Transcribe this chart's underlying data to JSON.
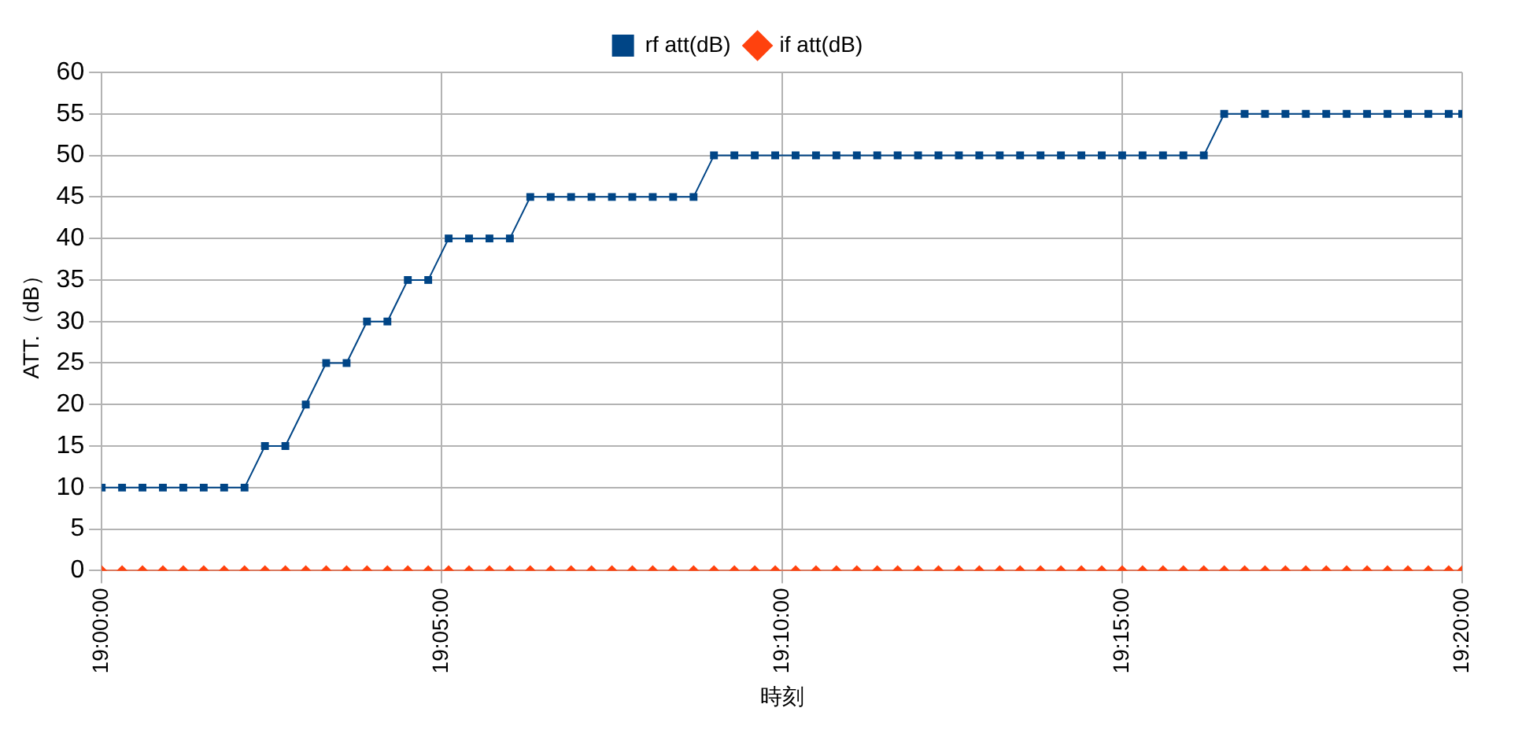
{
  "chart_data": {
    "type": "line",
    "xlabel": "時刻",
    "ylabel": "ATT.（dB）",
    "x": [
      19,
      19.005,
      19.01,
      19.015,
      19.02,
      19.025,
      19.03,
      19.035,
      19.04,
      19.045,
      19.05,
      19.055,
      19.06,
      19.065,
      19.07,
      19.075,
      19.08,
      19.085,
      19.09,
      19.095,
      19.1,
      19.105,
      19.11,
      19.115,
      19.12,
      19.125,
      19.13,
      19.135,
      19.14,
      19.145,
      19.15,
      19.155,
      19.16,
      19.165,
      19.17,
      19.175,
      19.18,
      19.185,
      19.19,
      19.195,
      19.2,
      19.205,
      19.21,
      19.215,
      19.22,
      19.225,
      19.23,
      19.235,
      19.24,
      19.245,
      19.25,
      19.255,
      19.26,
      19.265,
      19.27,
      19.275,
      19.28,
      19.285,
      19.29,
      19.295,
      19.3,
      19.305,
      19.31,
      19.315,
      19.32,
      19.325,
      19.33,
      19.3333
    ],
    "series": [
      {
        "name": "rf att(dB)",
        "color": "#004586",
        "marker": "square",
        "values": [
          10,
          10,
          10,
          10,
          10,
          10,
          10,
          10,
          15,
          15,
          20,
          25,
          25,
          30,
          30,
          35,
          35,
          40,
          40,
          40,
          40,
          45,
          45,
          45,
          45,
          45,
          45,
          45,
          45,
          45,
          50,
          50,
          50,
          50,
          50,
          50,
          50,
          50,
          50,
          50,
          50,
          50,
          50,
          50,
          50,
          50,
          50,
          50,
          50,
          50,
          50,
          50,
          50,
          50,
          50,
          55,
          55,
          55,
          55,
          55,
          55,
          55,
          55,
          55,
          55,
          55,
          55,
          55
        ]
      },
      {
        "name": "if att(dB)",
        "color": "#ff420e",
        "marker": "diamond",
        "values": [
          0,
          0,
          0,
          0,
          0,
          0,
          0,
          0,
          0,
          0,
          0,
          0,
          0,
          0,
          0,
          0,
          0,
          0,
          0,
          0,
          0,
          0,
          0,
          0,
          0,
          0,
          0,
          0,
          0,
          0,
          0,
          0,
          0,
          0,
          0,
          0,
          0,
          0,
          0,
          0,
          0,
          0,
          0,
          0,
          0,
          0,
          0,
          0,
          0,
          0,
          0,
          0,
          0,
          0,
          0,
          0,
          0,
          0,
          0,
          0,
          0,
          0,
          0,
          0,
          0,
          0,
          0,
          0
        ]
      }
    ],
    "xlim": [
      19,
      19.3333
    ],
    "xticks": [
      {
        "value": 19,
        "label": "19:00:00"
      },
      {
        "value": 19.0833,
        "label": "19:05:00"
      },
      {
        "value": 19.1667,
        "label": "19:10:00"
      },
      {
        "value": 19.25,
        "label": "19:15:00"
      },
      {
        "value": 19.3333,
        "label": "19:20:00"
      }
    ],
    "ylim": [
      0,
      60
    ],
    "yticks": [
      0,
      5,
      10,
      15,
      20,
      25,
      30,
      35,
      40,
      45,
      50,
      55,
      60
    ],
    "grid": true,
    "legend": "top",
    "line_style": "solid"
  }
}
